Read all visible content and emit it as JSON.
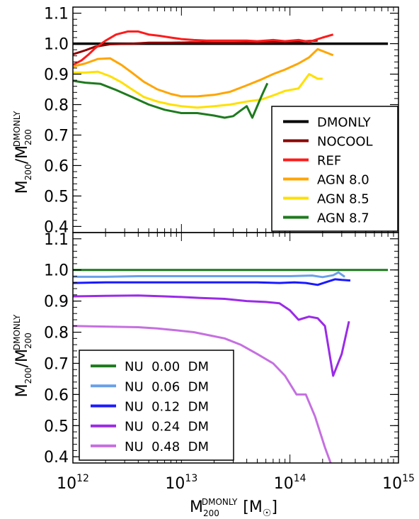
{
  "chart_data": [
    {
      "type": "line",
      "panel": "top",
      "ylabel": {
        "main": "M",
        "sub": "200",
        "slash": "/",
        "main2": "M",
        "sub2": "200",
        "sup2": "DMONLY"
      },
      "xscale": "log",
      "xlim": [
        1000000000000.0,
        1000000000000000.0
      ],
      "ylim": [
        0.38,
        1.12
      ],
      "yticks": [
        0.4,
        0.5,
        0.6,
        0.7,
        0.8,
        0.9,
        1.0,
        1.1
      ],
      "ytick_labels": [
        "0.4",
        "0.5",
        "0.6",
        "0.7",
        "0.8",
        "0.9",
        "1.0",
        "1.1"
      ],
      "legend": "bottom-right",
      "series": [
        {
          "name": "DMONLY",
          "color": "#000000",
          "width": 3.5,
          "x": [
            1000000000000.0,
            800000000000000.0
          ],
          "y": [
            1.0,
            1.0
          ]
        },
        {
          "name": "NOCOOL",
          "color": "#8b0000",
          "width": 3,
          "x": [
            1000000000000.0,
            1300000000000.0,
            1600000000000.0,
            2200000000000.0,
            3500000000000.0,
            5000000000000.0,
            8000000000000.0,
            12000000000000.0,
            20000000000000.0,
            30000000000000.0,
            50000000000000.0,
            80000000000000.0,
            120000000000000.0,
            180000000000000.0
          ],
          "y": [
            0.965,
            0.978,
            0.99,
            0.998,
            1.0,
            1.003,
            1.003,
            1.004,
            1.003,
            1.003,
            1.004,
            1.006,
            1.007,
            1.01
          ]
        },
        {
          "name": "REF",
          "color": "#ff1a1a",
          "width": 3,
          "x": [
            1000000000000.0,
            1200000000000.0,
            1400000000000.0,
            1600000000000.0,
            2000000000000.0,
            2500000000000.0,
            3200000000000.0,
            4000000000000.0,
            5000000000000.0,
            6500000000000.0,
            8000000000000.0,
            10000000000000.0,
            13000000000000.0,
            17000000000000.0,
            22000000000000.0,
            30000000000000.0,
            40000000000000.0,
            50000000000000.0,
            70000000000000.0,
            90000000000000.0,
            120000000000000.0,
            150000000000000.0,
            200000000000000.0,
            250000000000000.0
          ],
          "y": [
            0.93,
            0.945,
            0.965,
            0.985,
            1.01,
            1.03,
            1.04,
            1.04,
            1.03,
            1.025,
            1.02,
            1.015,
            1.012,
            1.01,
            1.01,
            1.01,
            1.01,
            1.008,
            1.012,
            1.008,
            1.012,
            1.006,
            1.02,
            1.03
          ]
        },
        {
          "name": "AGN 8.0",
          "color": "#ffa500",
          "width": 3,
          "x": [
            1000000000000.0,
            1300000000000.0,
            1700000000000.0,
            2200000000000.0,
            2800000000000.0,
            3500000000000.0,
            4500000000000.0,
            6000000000000.0,
            8000000000000.0,
            10000000000000.0,
            14000000000000.0,
            20000000000000.0,
            28000000000000.0,
            40000000000000.0,
            55000000000000.0,
            70000000000000.0,
            90000000000000.0,
            120000000000000.0,
            150000000000000.0,
            180000000000000.0,
            220000000000000.0,
            250000000000000.0
          ],
          "y": [
            0.925,
            0.935,
            0.95,
            0.952,
            0.93,
            0.905,
            0.875,
            0.85,
            0.835,
            0.827,
            0.827,
            0.832,
            0.842,
            0.863,
            0.883,
            0.9,
            0.915,
            0.935,
            0.955,
            0.982,
            0.97,
            0.962
          ]
        },
        {
          "name": "AGN 8.5",
          "color": "#ffe000",
          "width": 3,
          "x": [
            1000000000000.0,
            1300000000000.0,
            1700000000000.0,
            2200000000000.0,
            2800000000000.0,
            3500000000000.0,
            4500000000000.0,
            6000000000000.0,
            8000000000000.0,
            10000000000000.0,
            14000000000000.0,
            20000000000000.0,
            28000000000000.0,
            40000000000000.0,
            55000000000000.0,
            70000000000000.0,
            90000000000000.0,
            120000000000000.0,
            150000000000000.0,
            180000000000000.0,
            200000000000000.0
          ],
          "y": [
            0.905,
            0.905,
            0.908,
            0.893,
            0.873,
            0.85,
            0.825,
            0.81,
            0.8,
            0.795,
            0.79,
            0.795,
            0.8,
            0.81,
            0.817,
            0.83,
            0.845,
            0.853,
            0.9,
            0.885,
            0.885
          ]
        },
        {
          "name": "AGN 8.7",
          "color": "#1e7a1e",
          "width": 3,
          "x": [
            1000000000000.0,
            1300000000000.0,
            1800000000000.0,
            2500000000000.0,
            3500000000000.0,
            5000000000000.0,
            7000000000000.0,
            10000000000000.0,
            14000000000000.0,
            20000000000000.0,
            25000000000000.0,
            30000000000000.0,
            35000000000000.0,
            40000000000000.0,
            45000000000000.0,
            55000000000000.0,
            62000000000000.0
          ],
          "y": [
            0.878,
            0.872,
            0.868,
            0.848,
            0.825,
            0.8,
            0.783,
            0.772,
            0.772,
            0.764,
            0.757,
            0.762,
            0.78,
            0.795,
            0.757,
            0.83,
            0.87
          ]
        }
      ]
    },
    {
      "type": "line",
      "panel": "bottom",
      "ylabel": {
        "main": "M",
        "sub": "200",
        "slash": "/",
        "main2": "M",
        "sub2": "200",
        "sup2": "DMONLY"
      },
      "xlabel": {
        "main": "M",
        "sub": "200",
        "sup": "DMONLY",
        "unit_open": "[M",
        "unit_close": "]"
      },
      "xscale": "log",
      "xlim": [
        1000000000000.0,
        1000000000000000.0
      ],
      "ylim": [
        0.38,
        1.12
      ],
      "yticks": [
        0.4,
        0.5,
        0.6,
        0.7,
        0.8,
        0.9,
        1.0,
        1.1
      ],
      "ytick_labels": [
        "0.4",
        "0.5",
        "0.6",
        "0.7",
        "0.8",
        "0.9",
        "1.0",
        "1.1"
      ],
      "xticks": [
        1000000000000.0,
        10000000000000.0,
        100000000000000.0,
        1000000000000000.0
      ],
      "xtick_labels": [
        {
          "base": "10",
          "exp": "12"
        },
        {
          "base": "10",
          "exp": "13"
        },
        {
          "base": "10",
          "exp": "14"
        },
        {
          "base": "10",
          "exp": "15"
        }
      ],
      "legend": "bottom-left",
      "series": [
        {
          "name": "NU  0.00  DM",
          "color": "#1e7a1e",
          "width": 3,
          "x": [
            1000000000000.0,
            800000000000000.0
          ],
          "y": [
            1.0,
            1.0
          ]
        },
        {
          "name": "NU  0.06  DM",
          "color": "#6aa0e8",
          "width": 3,
          "x": [
            1000000000000.0,
            2000000000000.0,
            4000000000000.0,
            8000000000000.0,
            15000000000000.0,
            30000000000000.0,
            60000000000000.0,
            100000000000000.0,
            160000000000000.0,
            200000000000000.0,
            250000000000000.0,
            280000000000000.0,
            320000000000000.0
          ],
          "y": [
            0.978,
            0.978,
            0.98,
            0.98,
            0.98,
            0.98,
            0.98,
            0.98,
            0.982,
            0.977,
            0.983,
            0.992,
            0.978
          ]
        },
        {
          "name": "NU  0.12  DM",
          "color": "#1a1aff",
          "width": 3,
          "x": [
            1000000000000.0,
            2000000000000.0,
            4000000000000.0,
            8000000000000.0,
            15000000000000.0,
            30000000000000.0,
            50000000000000.0,
            80000000000000.0,
            110000000000000.0,
            140000000000000.0,
            180000000000000.0,
            220000000000000.0,
            260000000000000.0,
            300000000000000.0,
            360000000000000.0
          ],
          "y": [
            0.958,
            0.96,
            0.96,
            0.96,
            0.96,
            0.96,
            0.96,
            0.958,
            0.96,
            0.958,
            0.952,
            0.962,
            0.97,
            0.968,
            0.966
          ]
        },
        {
          "name": "NU  0.24  DM",
          "color": "#9a2be8",
          "width": 3,
          "x": [
            1000000000000.0,
            2000000000000.0,
            4000000000000.0,
            7000000000000.0,
            10000000000000.0,
            15000000000000.0,
            25000000000000.0,
            40000000000000.0,
            60000000000000.0,
            80000000000000.0,
            100000000000000.0,
            120000000000000.0,
            150000000000000.0,
            180000000000000.0,
            210000000000000.0,
            250000000000000.0,
            300000000000000.0,
            350000000000000.0
          ],
          "y": [
            0.915,
            0.917,
            0.918,
            0.915,
            0.913,
            0.91,
            0.907,
            0.9,
            0.897,
            0.893,
            0.87,
            0.84,
            0.85,
            0.845,
            0.82,
            0.66,
            0.73,
            0.835
          ]
        },
        {
          "name": "NU  0.48  DM",
          "color": "#c570e0",
          "width": 3,
          "x": [
            1000000000000.0,
            2000000000000.0,
            4000000000000.0,
            6000000000000.0,
            9000000000000.0,
            13000000000000.0,
            18000000000000.0,
            25000000000000.0,
            35000000000000.0,
            50000000000000.0,
            70000000000000.0,
            90000000000000.0,
            115000000000000.0,
            140000000000000.0,
            170000000000000.0,
            210000000000000.0,
            240000000000000.0
          ],
          "y": [
            0.82,
            0.818,
            0.816,
            0.812,
            0.806,
            0.8,
            0.79,
            0.78,
            0.76,
            0.73,
            0.7,
            0.66,
            0.6,
            0.6,
            0.53,
            0.43,
            0.375
          ]
        }
      ]
    }
  ]
}
